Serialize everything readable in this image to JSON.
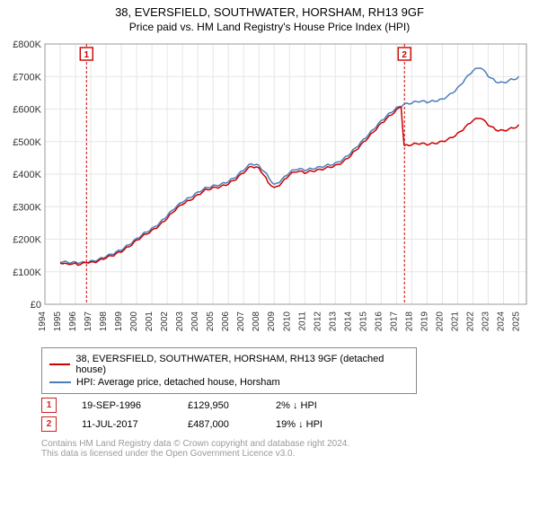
{
  "title_line1": "38, EVERSFIELD, SOUTHWATER, HORSHAM, RH13 9GF",
  "title_line2": "Price paid vs. HM Land Registry's House Price Index (HPI)",
  "chart": {
    "type": "line",
    "background_color": "#ffffff",
    "plot_bg": "#ffffff",
    "grid_color": "#e6e6e6",
    "axis_color": "#888888",
    "xlim": [
      1994,
      2025.5
    ],
    "ylim": [
      0,
      800000
    ],
    "yticks": [
      0,
      100000,
      200000,
      300000,
      400000,
      500000,
      600000,
      700000,
      800000
    ],
    "ytick_labels": [
      "£0",
      "£100K",
      "£200K",
      "£300K",
      "£400K",
      "£500K",
      "£600K",
      "£700K",
      "£800K"
    ],
    "xticks": [
      1994,
      1995,
      1996,
      1997,
      1998,
      1999,
      2000,
      2001,
      2002,
      2003,
      2004,
      2005,
      2006,
      2007,
      2008,
      2009,
      2010,
      2011,
      2012,
      2013,
      2014,
      2015,
      2016,
      2017,
      2018,
      2019,
      2020,
      2021,
      2022,
      2023,
      2024,
      2025
    ],
    "series": [
      {
        "name": "property",
        "label": "38, EVERSFIELD, SOUTHWATER, HORSHAM, RH13 9GF (detached house)",
        "color": "#cc0000",
        "line_width": 1.5,
        "segments": [
          [
            [
              1995.0,
              129000
            ],
            [
              1995.3,
              128000
            ],
            [
              1995.6,
              127000
            ],
            [
              1996.0,
              128000
            ],
            [
              1996.3,
              127000
            ],
            [
              1996.7,
              129950
            ],
            [
              1997.0,
              132000
            ],
            [
              1997.5,
              138000
            ],
            [
              1998.0,
              148000
            ],
            [
              1998.5,
              155000
            ],
            [
              1999.0,
              165000
            ],
            [
              1999.5,
              178000
            ],
            [
              2000.0,
              195000
            ],
            [
              2000.5,
              210000
            ],
            [
              2001.0,
              222000
            ],
            [
              2001.5,
              238000
            ],
            [
              2002.0,
              260000
            ],
            [
              2002.5,
              285000
            ],
            [
              2003.0,
              305000
            ],
            [
              2003.5,
              318000
            ],
            [
              2004.0,
              335000
            ],
            [
              2004.5,
              352000
            ],
            [
              2005.0,
              360000
            ],
            [
              2005.5,
              365000
            ],
            [
              2006.0,
              375000
            ],
            [
              2006.5,
              390000
            ],
            [
              2007.0,
              410000
            ],
            [
              2007.5,
              428000
            ],
            [
              2008.0,
              420000
            ],
            [
              2008.3,
              395000
            ],
            [
              2008.6,
              370000
            ],
            [
              2009.0,
              355000
            ],
            [
              2009.5,
              370000
            ],
            [
              2010.0,
              395000
            ],
            [
              2010.5,
              405000
            ],
            [
              2011.0,
              400000
            ],
            [
              2011.5,
              405000
            ],
            [
              2012.0,
              410000
            ],
            [
              2012.5,
              418000
            ],
            [
              2013.0,
              425000
            ],
            [
              2013.5,
              438000
            ],
            [
              2014.0,
              460000
            ],
            [
              2014.5,
              485000
            ],
            [
              2015.0,
              510000
            ],
            [
              2015.5,
              535000
            ],
            [
              2016.0,
              560000
            ],
            [
              2016.5,
              580000
            ],
            [
              2017.0,
              598000
            ],
            [
              2017.3,
              605000
            ],
            [
              2017.5,
              487000
            ]
          ],
          [
            [
              2017.5,
              487000
            ],
            [
              2018.0,
              490000
            ],
            [
              2018.5,
              492000
            ],
            [
              2019.0,
              488000
            ],
            [
              2019.5,
              490000
            ],
            [
              2020.0,
              495000
            ],
            [
              2020.5,
              505000
            ],
            [
              2021.0,
              520000
            ],
            [
              2021.5,
              542000
            ],
            [
              2022.0,
              565000
            ],
            [
              2022.5,
              575000
            ],
            [
              2023.0,
              555000
            ],
            [
              2023.5,
              540000
            ],
            [
              2024.0,
              538000
            ],
            [
              2024.5,
              545000
            ],
            [
              2025.0,
              552000
            ]
          ]
        ]
      },
      {
        "name": "hpi",
        "label": "HPI: Average price, detached house, Horsham",
        "color": "#4a7ebb",
        "line_width": 1.5,
        "segments": [
          [
            [
              1995.0,
              131000
            ],
            [
              1995.5,
              130000
            ],
            [
              1996.0,
              131000
            ],
            [
              1996.5,
              132000
            ],
            [
              1997.0,
              136000
            ],
            [
              1997.5,
              142000
            ],
            [
              1998.0,
              152000
            ],
            [
              1998.5,
              160000
            ],
            [
              1999.0,
              170000
            ],
            [
              1999.5,
              184000
            ],
            [
              2000.0,
              200000
            ],
            [
              2000.5,
              216000
            ],
            [
              2001.0,
              228000
            ],
            [
              2001.5,
              245000
            ],
            [
              2002.0,
              268000
            ],
            [
              2002.5,
              292000
            ],
            [
              2003.0,
              312000
            ],
            [
              2003.5,
              326000
            ],
            [
              2004.0,
              343000
            ],
            [
              2004.5,
              358000
            ],
            [
              2005.0,
              366000
            ],
            [
              2005.5,
              372000
            ],
            [
              2006.0,
              382000
            ],
            [
              2006.5,
              397000
            ],
            [
              2007.0,
              418000
            ],
            [
              2007.5,
              436000
            ],
            [
              2008.0,
              428000
            ],
            [
              2008.5,
              400000
            ],
            [
              2009.0,
              365000
            ],
            [
              2009.5,
              380000
            ],
            [
              2010.0,
              402000
            ],
            [
              2010.5,
              412000
            ],
            [
              2011.0,
              408000
            ],
            [
              2011.5,
              412000
            ],
            [
              2012.0,
              418000
            ],
            [
              2012.5,
              425000
            ],
            [
              2013.0,
              432000
            ],
            [
              2013.5,
              446000
            ],
            [
              2014.0,
              468000
            ],
            [
              2014.5,
              493000
            ],
            [
              2015.0,
              518000
            ],
            [
              2015.5,
              543000
            ],
            [
              2016.0,
              568000
            ],
            [
              2016.5,
              588000
            ],
            [
              2017.0,
              605000
            ],
            [
              2017.5,
              615000
            ],
            [
              2018.0,
              618000
            ],
            [
              2018.5,
              622000
            ],
            [
              2019.0,
              618000
            ],
            [
              2019.5,
              620000
            ],
            [
              2020.0,
              625000
            ],
            [
              2020.5,
              640000
            ],
            [
              2021.0,
              660000
            ],
            [
              2021.5,
              690000
            ],
            [
              2022.0,
              718000
            ],
            [
              2022.5,
              730000
            ],
            [
              2023.0,
              705000
            ],
            [
              2023.5,
              688000
            ],
            [
              2024.0,
              685000
            ],
            [
              2024.5,
              695000
            ],
            [
              2025.0,
              700000
            ]
          ]
        ]
      }
    ],
    "markers": [
      {
        "id": "1",
        "x": 1996.72,
        "color": "#cc0000",
        "dash": "3,2"
      },
      {
        "id": "2",
        "x": 2017.52,
        "color": "#cc0000",
        "dash": "3,2"
      }
    ]
  },
  "legend": {
    "items": [
      {
        "color": "#cc0000",
        "label": "38, EVERSFIELD, SOUTHWATER, HORSHAM, RH13 9GF (detached house)"
      },
      {
        "color": "#4a7ebb",
        "label": "HPI: Average price, detached house, Horsham"
      }
    ]
  },
  "marker_rows": [
    {
      "id": "1",
      "date": "19-SEP-1996",
      "price": "£129,950",
      "pct": "2%",
      "arrow": "↓",
      "suffix": "HPI"
    },
    {
      "id": "2",
      "date": "11-JUL-2017",
      "price": "£487,000",
      "pct": "19%",
      "arrow": "↓",
      "suffix": "HPI"
    }
  ],
  "footnote1": "Contains HM Land Registry data © Crown copyright and database right 2024.",
  "footnote2": "This data is licensed under the Open Government Licence v3.0."
}
